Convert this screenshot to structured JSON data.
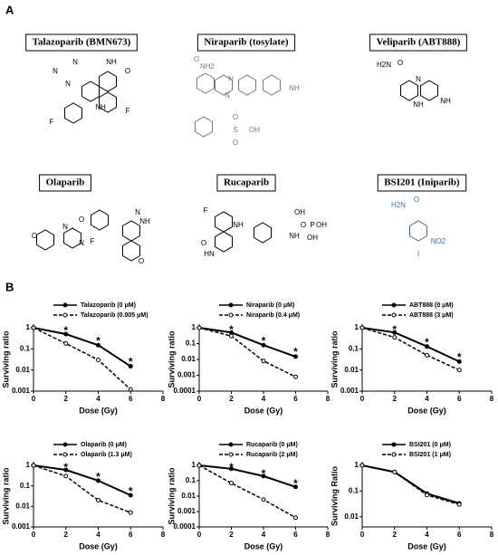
{
  "panel_a": {
    "label": "A",
    "drugs": [
      {
        "name": "Talazoparib (BMN673)",
        "atoms": [
          "N",
          "N",
          "N",
          "NH",
          "O",
          "NH",
          "F",
          "F"
        ]
      },
      {
        "name": "Niraparib (tosylate)",
        "atoms": [
          "O",
          "NH2",
          "N",
          "N",
          "NH",
          "S",
          "O",
          "O",
          "OH"
        ]
      },
      {
        "name": "Veliparib (ABT888)",
        "atoms": [
          "H2N",
          "O",
          "N",
          "NH",
          "NH"
        ]
      },
      {
        "name": "Olaparib",
        "atoms": [
          "O",
          "N",
          "N",
          "O",
          "F",
          "N",
          "NH",
          "O"
        ]
      },
      {
        "name": "Rucaparib",
        "atoms": [
          "F",
          "NH",
          "HN",
          "O",
          "NH",
          "OH",
          "O",
          "P",
          "OH",
          "OH"
        ]
      },
      {
        "name": "BSI201 (Iniparib)",
        "atoms": [
          "H2N",
          "O",
          "NO2",
          "I"
        ]
      }
    ]
  },
  "panel_b": {
    "label": "B"
  },
  "chart_data": [
    {
      "type": "line",
      "x_label": "Dose (Gy)",
      "y_label": "Surviving ratio",
      "log_y": true,
      "xlim": [
        0,
        8
      ],
      "xticks": [
        0,
        2,
        4,
        6,
        8
      ],
      "ylim": [
        0.001,
        1
      ],
      "yticks": [
        1,
        0.1,
        0.01,
        0.001
      ],
      "x": [
        0,
        2,
        4,
        6
      ],
      "series": [
        {
          "name": "Talazoparib  (0 μM)",
          "color": "#000000",
          "line_style": "solid",
          "values": [
            1,
            0.5,
            0.15,
            0.015
          ]
        },
        {
          "name": "Talazoparib  (0.005 μM)",
          "color": "#000000",
          "line_style": "dashed",
          "values": [
            1,
            0.18,
            0.03,
            0.0012
          ]
        }
      ],
      "annotations": [
        {
          "text": "*",
          "x": 2,
          "y": 0.9
        },
        {
          "text": "*",
          "x": 4,
          "y": 0.3
        },
        {
          "text": "*",
          "x": 6,
          "y": 0.03
        }
      ]
    },
    {
      "type": "line",
      "x_label": "Dose (Gy)",
      "y_label": "Surviving ratio",
      "log_y": true,
      "xlim": [
        0,
        8
      ],
      "xticks": [
        0,
        2,
        4,
        6,
        8
      ],
      "ylim": [
        0.0001,
        1
      ],
      "yticks": [
        1,
        0.1,
        0.01,
        0.001,
        0.0001
      ],
      "x": [
        0,
        2,
        4,
        6
      ],
      "series": [
        {
          "name": "Niraparib   (0 μM)",
          "color": "#000000",
          "line_style": "solid",
          "values": [
            1,
            0.5,
            0.08,
            0.015
          ]
        },
        {
          "name": "Niraparib   (0.4 μM)",
          "color": "#000000",
          "line_style": "dashed",
          "values": [
            1,
            0.3,
            0.008,
            0.0008
          ]
        }
      ],
      "annotations": [
        {
          "text": "*",
          "x": 2,
          "y": 1
        },
        {
          "text": "*",
          "x": 4,
          "y": 0.2
        },
        {
          "text": "*",
          "x": 6,
          "y": 0.04
        }
      ]
    },
    {
      "type": "line",
      "x_label": "Dose (Gy)",
      "y_label": "Surviving ratio",
      "log_y": true,
      "xlim": [
        0,
        8
      ],
      "xticks": [
        0,
        2,
        4,
        6,
        8
      ],
      "ylim": [
        0.001,
        1
      ],
      "yticks": [
        1,
        0.1,
        0.01,
        0.001
      ],
      "x": [
        0,
        2,
        4,
        6
      ],
      "series": [
        {
          "name": "ABT888   (0 μM)",
          "color": "#000000",
          "line_style": "solid",
          "values": [
            1,
            0.6,
            0.13,
            0.025
          ]
        },
        {
          "name": "ABT888   (3 μM)",
          "color": "#000000",
          "line_style": "dashed",
          "values": [
            1,
            0.35,
            0.05,
            0.01
          ]
        }
      ],
      "annotations": [
        {
          "text": "*",
          "x": 2,
          "y": 1
        },
        {
          "text": "*",
          "x": 4,
          "y": 0.25
        },
        {
          "text": "*",
          "x": 6,
          "y": 0.05
        }
      ]
    },
    {
      "type": "line",
      "x_label": "Dose (Gy)",
      "y_label": "Surviving ratio",
      "log_y": true,
      "xlim": [
        0,
        8
      ],
      "xticks": [
        0,
        2,
        4,
        6,
        8
      ],
      "ylim": [
        0.001,
        1
      ],
      "yticks": [
        1,
        0.1,
        0.01,
        0.001
      ],
      "x": [
        0,
        2,
        4,
        6
      ],
      "series": [
        {
          "name": "Olaparib   (0 μM)",
          "color": "#000000",
          "line_style": "solid",
          "values": [
            1,
            0.6,
            0.18,
            0.035
          ]
        },
        {
          "name": "Olaparib   (1.3 μM)",
          "color": "#000000",
          "line_style": "dashed",
          "values": [
            1,
            0.3,
            0.02,
            0.005
          ]
        }
      ],
      "annotations": [
        {
          "text": "*",
          "x": 2,
          "y": 1
        },
        {
          "text": "*",
          "x": 4,
          "y": 0.35
        },
        {
          "text": "*",
          "x": 6,
          "y": 0.07
        }
      ]
    },
    {
      "type": "line",
      "x_label": "Dose (Gy)",
      "y_label": "Surviving ratio",
      "log_y": true,
      "xlim": [
        0,
        8
      ],
      "xticks": [
        0,
        2,
        4,
        6,
        8
      ],
      "ylim": [
        0.0001,
        1
      ],
      "yticks": [
        1,
        0.1,
        0.01,
        0.001,
        0.0001
      ],
      "x": [
        0,
        2,
        4,
        6
      ],
      "series": [
        {
          "name": "Rucaparib   (0 μM)",
          "color": "#000000",
          "line_style": "solid",
          "values": [
            1,
            0.6,
            0.2,
            0.04
          ]
        },
        {
          "name": "Rucaparib   (2 μM)",
          "color": "#000000",
          "line_style": "dashed",
          "values": [
            1,
            0.07,
            0.006,
            0.0004
          ]
        }
      ],
      "annotations": [
        {
          "text": "*",
          "x": 2,
          "y": 1
        },
        {
          "text": "*",
          "x": 4,
          "y": 0.4
        },
        {
          "text": "*",
          "x": 6,
          "y": 0.09
        }
      ]
    },
    {
      "type": "line",
      "x_label": "Dose (Gy)",
      "y_label": "Surviving Ratio",
      "log_y": true,
      "xlim": [
        0,
        8
      ],
      "xticks": [
        0,
        2,
        4,
        6,
        8
      ],
      "ylim": [
        0.004,
        1
      ],
      "yticks": [
        1,
        0.1,
        0.01
      ],
      "x": [
        0,
        2,
        4,
        6
      ],
      "series": [
        {
          "name": "BSI201   (0 μM)",
          "color": "#000000",
          "line_style": "solid",
          "values": [
            1,
            0.55,
            0.08,
            0.033
          ]
        },
        {
          "name": "BSI201   (1 μM)",
          "color": "#000000",
          "line_style": "dashed",
          "values": [
            1,
            0.55,
            0.07,
            0.03
          ]
        }
      ],
      "annotations": []
    }
  ]
}
